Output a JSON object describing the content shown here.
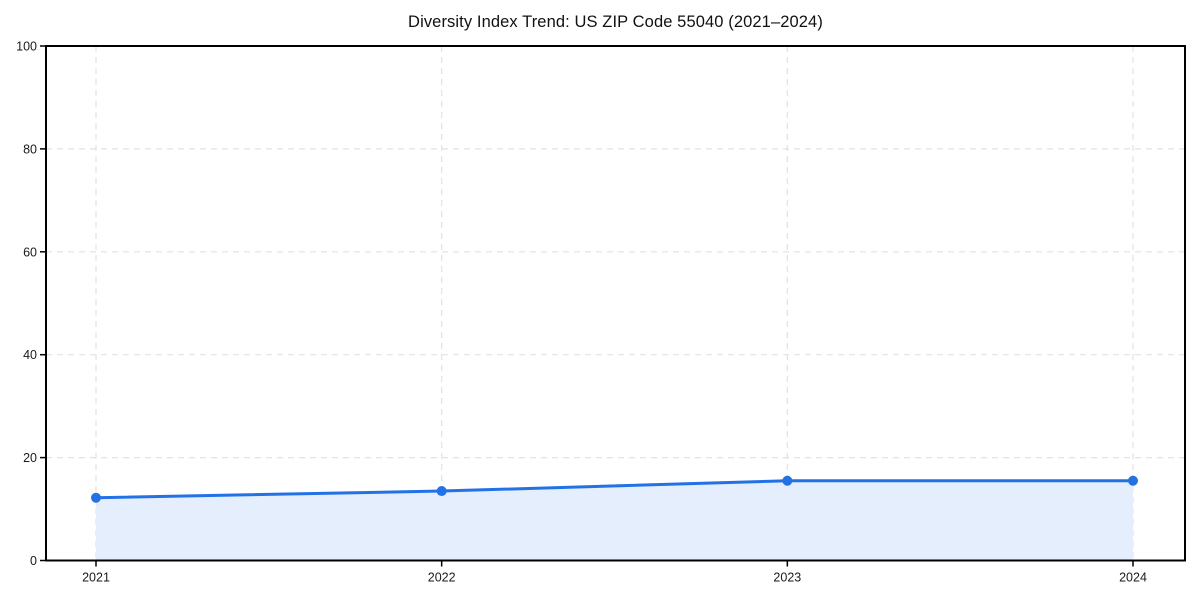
{
  "chart_data": {
    "type": "line",
    "title": "Diversity Index Trend: US ZIP Code 55040 (2021–2024)",
    "categories": [
      "2021",
      "2022",
      "2023",
      "2024"
    ],
    "series": [
      {
        "name": "Diversity Index",
        "values": [
          12.2,
          13.5,
          15.5,
          15.5
        ]
      }
    ],
    "xlabel": "",
    "ylabel": "",
    "ylim": [
      0,
      100
    ],
    "yticks": [
      0,
      20,
      40,
      60,
      80,
      100
    ],
    "grid": true,
    "grid_style": "dashed",
    "legend": "none",
    "colors": {
      "line": "#2272e6",
      "marker": "#2272e6",
      "area_fill": "#e4eefc",
      "gridline": "#e2e2e2",
      "axis_border": "#000000",
      "tick_label": "#1a1a1a",
      "title": "#111111"
    }
  }
}
